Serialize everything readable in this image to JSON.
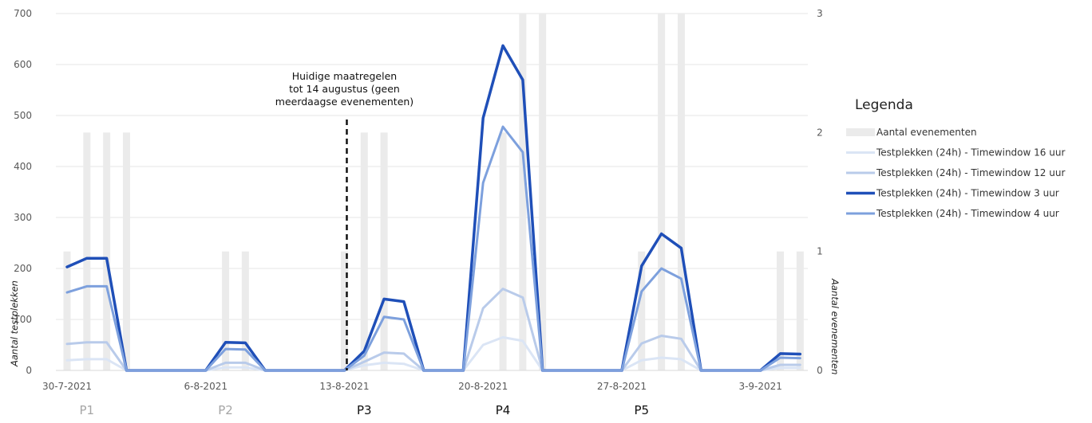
{
  "chart_data": {
    "type": "line",
    "title": "",
    "ylabel": "Aantal testplekken",
    "y2label": "Aantal evenementen",
    "ylim": [
      0,
      700
    ],
    "y2lim": [
      0,
      3
    ],
    "yticks": [
      0,
      100,
      200,
      300,
      400,
      500,
      600,
      700
    ],
    "y2ticks": [
      0,
      1,
      2,
      3
    ],
    "grid": true,
    "x_days": [
      "30-7-2021",
      "31-7-2021",
      "1-8-2021",
      "2-8-2021",
      "3-8-2021",
      "4-8-2021",
      "5-8-2021",
      "6-8-2021",
      "7-8-2021",
      "8-8-2021",
      "9-8-2021",
      "10-8-2021",
      "11-8-2021",
      "12-8-2021",
      "13-8-2021",
      "14-8-2021",
      "15-8-2021",
      "16-8-2021",
      "17-8-2021",
      "18-8-2021",
      "19-8-2021",
      "20-8-2021",
      "21-8-2021",
      "22-8-2021",
      "23-8-2021",
      "24-8-2021",
      "25-8-2021",
      "26-8-2021",
      "27-8-2021",
      "28-8-2021",
      "29-8-2021",
      "30-8-2021",
      "31-8-2021",
      "1-9-2021",
      "2-9-2021",
      "3-9-2021",
      "4-9-2021",
      "5-9-2021"
    ],
    "x_ticks": [
      "30-7-2021",
      "6-8-2021",
      "13-8-2021",
      "20-8-2021",
      "27-8-2021",
      "3-9-2021"
    ],
    "bar_series": {
      "name": "Aantal evenementen",
      "axis": "right",
      "x": [
        "30-7-2021",
        "31-7-2021",
        "1-8-2021",
        "2-8-2021",
        "7-8-2021",
        "8-8-2021",
        "13-8-2021",
        "14-8-2021",
        "15-8-2021",
        "21-8-2021",
        "22-8-2021",
        "23-8-2021",
        "28-8-2021",
        "29-8-2021",
        "30-8-2021",
        "4-9-2021",
        "5-9-2021"
      ],
      "values": [
        1,
        2,
        2,
        2,
        1,
        1,
        1,
        2,
        2,
        2,
        3,
        3,
        1,
        3,
        3,
        1,
        1
      ],
      "color": "#ebebeb"
    },
    "series": [
      {
        "name": "Testplekken (24h) - Timewindow 16 uur",
        "values": [
          20,
          22,
          22,
          0,
          0,
          0,
          0,
          0,
          6,
          6,
          0,
          0,
          0,
          0,
          0,
          10,
          15,
          13,
          0,
          0,
          0,
          50,
          65,
          58,
          0,
          0,
          0,
          0,
          0,
          20,
          25,
          22,
          0,
          0,
          0,
          0,
          5,
          5
        ],
        "color": "#dbe5f5",
        "width": 3
      },
      {
        "name": "Testplekken (24h)  - Timewindow 12 uur",
        "values": [
          52,
          55,
          55,
          0,
          0,
          0,
          0,
          0,
          15,
          15,
          0,
          0,
          0,
          0,
          0,
          17,
          35,
          33,
          0,
          0,
          0,
          122,
          160,
          143,
          0,
          0,
          0,
          0,
          0,
          53,
          68,
          62,
          0,
          0,
          0,
          0,
          11,
          11
        ],
        "color": "#b9cbea",
        "width": 3
      },
      {
        "name": "Testplekken (24h)  - Timewindow 3 uur",
        "values": [
          203,
          220,
          220,
          0,
          0,
          0,
          0,
          0,
          55,
          54,
          0,
          0,
          0,
          0,
          0,
          38,
          140,
          135,
          0,
          0,
          0,
          495,
          637,
          570,
          0,
          0,
          0,
          0,
          0,
          205,
          268,
          240,
          0,
          0,
          0,
          0,
          33,
          32
        ],
        "color": "#1f4fb8",
        "width": 3.5
      },
      {
        "name": "Testplekken (24h) - Timewindow 4 uur",
        "values": [
          153,
          165,
          165,
          0,
          0,
          0,
          0,
          0,
          42,
          41,
          0,
          0,
          0,
          0,
          0,
          29,
          105,
          100,
          0,
          0,
          0,
          368,
          478,
          428,
          0,
          0,
          0,
          0,
          0,
          155,
          200,
          180,
          0,
          0,
          0,
          0,
          25,
          24
        ],
        "color": "#7da0dd",
        "width": 3
      }
    ],
    "annotation": {
      "text": [
        "Huidige maatregelen",
        "tot 14 augustus (geen",
        "meerdaagse evenementen)"
      ],
      "x": "13-8-2021"
    },
    "periods": [
      {
        "label": "P1",
        "center": "31-7-2021",
        "color": "#a6a6a6"
      },
      {
        "label": "P2",
        "center": "7-8-2021",
        "color": "#a6a6a6"
      },
      {
        "label": "P3",
        "center": "14-8-2021",
        "color": "#111111"
      },
      {
        "label": "P4",
        "center": "21-8-2021",
        "color": "#111111"
      },
      {
        "label": "P5",
        "center": "28-8-2021",
        "color": "#111111"
      }
    ],
    "legend": {
      "title": "Legenda",
      "position": "right",
      "items": [
        {
          "label": "Aantal evenementen",
          "color": "#ebebeb",
          "kind": "bar"
        },
        {
          "label": "Testplekken (24h) - Timewindow 16 uur",
          "color": "#dbe5f5",
          "kind": "line"
        },
        {
          "label": "Testplekken (24h)  - Timewindow 12 uur",
          "color": "#b9cbea",
          "kind": "line"
        },
        {
          "label": "Testplekken (24h)  - Timewindow 3 uur",
          "color": "#1f4fb8",
          "kind": "line"
        },
        {
          "label": "Testplekken (24h) - Timewindow 4 uur",
          "color": "#7da0dd",
          "kind": "line"
        }
      ]
    }
  }
}
